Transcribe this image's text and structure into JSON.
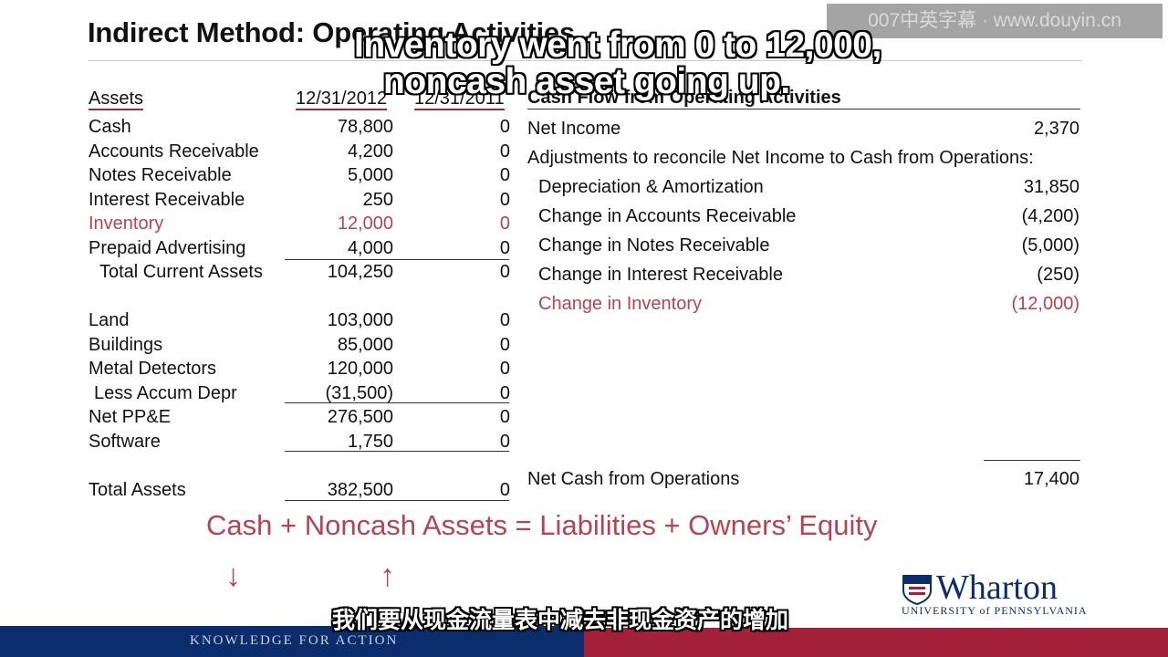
{
  "slide": {
    "title": "Indirect Method: Operating Activities",
    "watermark": "007中英字幕 ·  www.douyin.cn",
    "subtitle_en_line1": "Inventory went from 0 to 12,000,",
    "subtitle_en_line2": "noncash asset going up.",
    "subtitle_zh": "我们要从现金流量表中减去非现金资产的增加"
  },
  "balance_sheet": {
    "header": {
      "label": "Assets",
      "col_2012": "12/31/2012",
      "col_2011": "12/31/2011"
    },
    "current": [
      {
        "label": "Cash",
        "v2012": "78,800",
        "v2011": "0",
        "highlight": false
      },
      {
        "label": "Accounts Receivable",
        "v2012": "4,200",
        "v2011": "0",
        "highlight": false
      },
      {
        "label": "Notes Receivable",
        "v2012": "5,000",
        "v2011": "0",
        "highlight": false
      },
      {
        "label": "Interest Receivable",
        "v2012": "250",
        "v2011": "0",
        "highlight": false
      },
      {
        "label": "Inventory",
        "v2012": "12,000",
        "v2011": "0",
        "highlight": true
      },
      {
        "label": "Prepaid Advertising",
        "v2012": "4,000",
        "v2011": "0",
        "highlight": false
      }
    ],
    "total_current": {
      "label": "Total Current Assets",
      "v2012": "104,250",
      "v2011": "0"
    },
    "long_term": [
      {
        "label": "Land",
        "v2012": "103,000",
        "v2011": "0"
      },
      {
        "label": "Buildings",
        "v2012": "85,000",
        "v2011": "0"
      },
      {
        "label": "Metal Detectors",
        "v2012": "120,000",
        "v2011": "0"
      },
      {
        "label": "Less Accum Depr",
        "v2012": "(31,500)",
        "v2011": "0"
      },
      {
        "label": "Net PP&E",
        "v2012": "276,500",
        "v2011": "0"
      },
      {
        "label": "Software",
        "v2012": "1,750",
        "v2011": "0"
      }
    ],
    "total_assets": {
      "label": "Total Assets",
      "v2012": "382,500",
      "v2011": "0"
    }
  },
  "cash_flow": {
    "title": "Cash Flow from Operating Activities",
    "net_income": {
      "label": "Net Income",
      "value": "2,370"
    },
    "adjustments_label": "Adjustments to reconcile Net Income to Cash from Operations:",
    "items": [
      {
        "label": "Depreciation & Amortization",
        "value": "31,850",
        "highlight": false
      },
      {
        "label": "Change in Accounts Receivable",
        "value": "(4,200)",
        "highlight": false
      },
      {
        "label": "Change in Notes Receivable",
        "value": "(5,000)",
        "highlight": false
      },
      {
        "label": "Change in Interest Receivable",
        "value": "(250)",
        "highlight": false
      },
      {
        "label": "Change in Inventory",
        "value": "(12,000)",
        "highlight": true
      }
    ],
    "net_cash": {
      "label": "Net Cash from Operations",
      "value": "17,400"
    }
  },
  "equation": {
    "text": "Cash + Noncash Assets = Liabilities + Owners’ Equity",
    "arrow_down": "↓",
    "arrow_up": "↑"
  },
  "logo": {
    "word": "Wharton",
    "sub": "UNIVERSITY of PENNSYLVANIA"
  },
  "footer": {
    "text": "KNOWLEDGE FOR ACTION"
  },
  "colors": {
    "accent_red": "#b24552",
    "navy": "#0c2d6b",
    "footer_red": "#a3203a"
  }
}
